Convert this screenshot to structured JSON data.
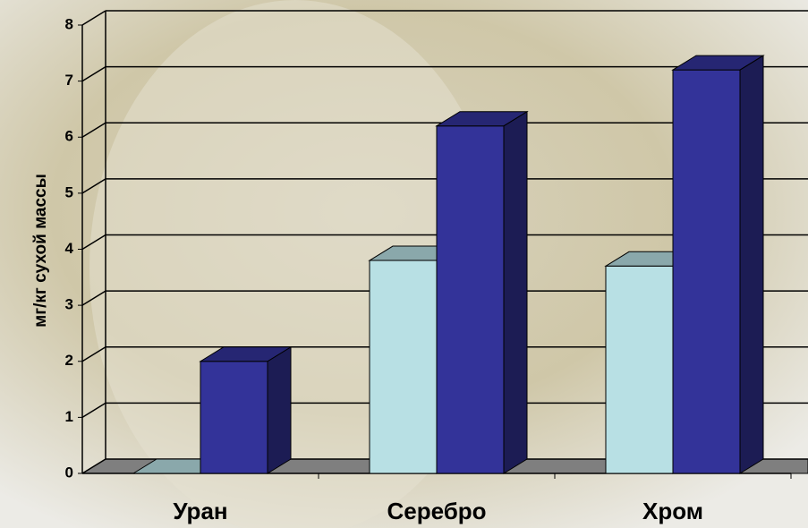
{
  "chart_data": {
    "type": "bar3d",
    "y_label": "мг/кг сухой массы",
    "categories": [
      "Уран",
      "Серебро",
      "Хром"
    ],
    "series": [
      {
        "color": "#b8e0e4",
        "values": [
          0,
          3.8,
          3.7
        ]
      },
      {
        "color": "#333399",
        "values": [
          2.0,
          6.2,
          7.2
        ]
      }
    ],
    "ylim": [
      0,
      8
    ],
    "yticks": [
      0,
      1,
      2,
      3,
      4,
      5,
      6,
      7,
      8
    ],
    "grid": true
  }
}
